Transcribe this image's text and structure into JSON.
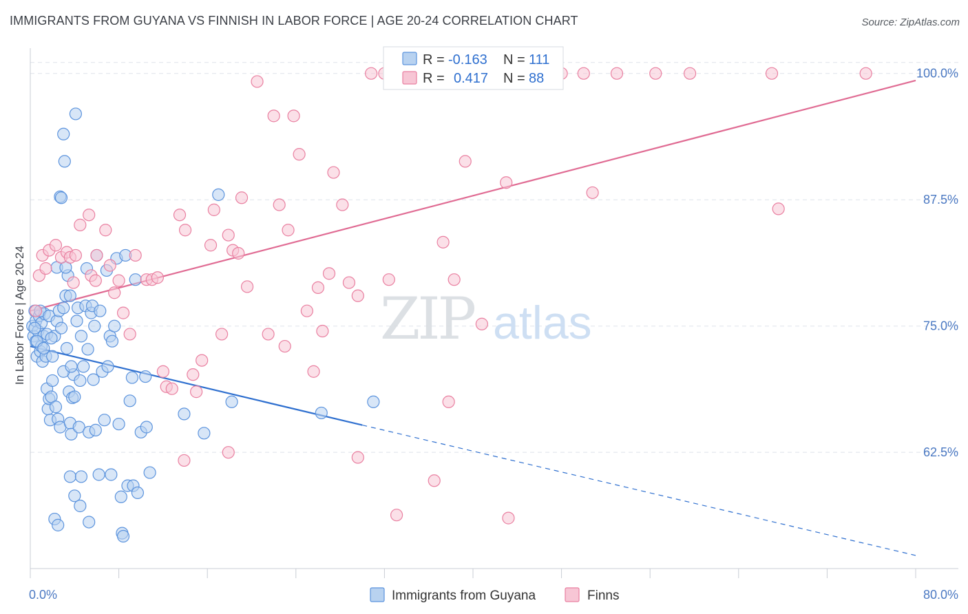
{
  "title": "IMMIGRANTS FROM GUYANA VS FINNISH IN LABOR FORCE | AGE 20-24 CORRELATION CHART",
  "source": "Source: ZipAtlas.com",
  "watermark": {
    "zip": "ZIP",
    "atlas": "atlas"
  },
  "colors": {
    "blue": "#5b93dd",
    "blue_fill": "#b8d2f0",
    "blue_line": "#2e6fcf",
    "pink": "#e97fa0",
    "pink_fill": "#f7c6d5",
    "pink_line": "#e06b93",
    "axis_text": "#4a78c2",
    "grid": "#dde2ea"
  },
  "legend_box": {
    "rows": [
      {
        "r_label": "R =",
        "r_value": "-0.163",
        "n_label": "N =",
        "n_value": "111"
      },
      {
        "r_label": "R =",
        "r_value": "0.417",
        "n_label": "N =",
        "n_value": "88"
      }
    ]
  },
  "bottom_legend": [
    {
      "label": "Immigrants from Guyana"
    },
    {
      "label": "Finns"
    }
  ],
  "chart_data": {
    "type": "scatter",
    "ylabel": "In Labor Force | Age 20-24",
    "x_tick_labels": [
      "0.0%",
      "80.0%"
    ],
    "y_tick_labels": [
      "100.0%",
      "87.5%",
      "75.0%",
      "62.5%"
    ],
    "y_tick_values": [
      100,
      87.5,
      75,
      62.5
    ],
    "xlim": [
      0,
      80
    ],
    "ylim": [
      51,
      102.5
    ],
    "grid": true,
    "legend_placement": "top-center",
    "series": [
      {
        "name": "Immigrants from Guyana",
        "r": -0.163,
        "n": 111,
        "trend": {
          "x0": 0,
          "y0": 73.0,
          "x1": 30,
          "y1": 65.2,
          "dash_x1": 80,
          "dash_y1": 52.3
        },
        "points": [
          [
            0.2,
            75.0
          ],
          [
            0.3,
            74.0
          ],
          [
            0.4,
            76.5
          ],
          [
            0.5,
            73.5
          ],
          [
            0.5,
            75.5
          ],
          [
            0.6,
            72.0
          ],
          [
            0.7,
            74.5
          ],
          [
            0.8,
            76.0
          ],
          [
            0.9,
            72.5
          ],
          [
            1.0,
            73.0
          ],
          [
            1.0,
            75.3
          ],
          [
            1.1,
            71.5
          ],
          [
            1.2,
            74.0
          ],
          [
            1.3,
            76.2
          ],
          [
            1.4,
            72.0
          ],
          [
            1.5,
            68.8
          ],
          [
            1.6,
            66.8
          ],
          [
            1.7,
            67.8
          ],
          [
            1.8,
            65.7
          ],
          [
            1.9,
            68.0
          ],
          [
            0.4,
            74.8
          ],
          [
            0.6,
            73.5
          ],
          [
            0.9,
            76.5
          ],
          [
            1.2,
            72.8
          ],
          [
            1.5,
            74.2
          ],
          [
            1.7,
            76.0
          ],
          [
            2.0,
            72.0
          ],
          [
            2.2,
            74.0
          ],
          [
            2.4,
            75.5
          ],
          [
            2.6,
            76.5
          ],
          [
            2.0,
            69.6
          ],
          [
            2.3,
            67.0
          ],
          [
            2.5,
            65.8
          ],
          [
            2.7,
            65.0
          ],
          [
            2.8,
            74.8
          ],
          [
            3.0,
            76.8
          ],
          [
            3.2,
            78.0
          ],
          [
            3.4,
            80.0
          ],
          [
            3.6,
            78.0
          ],
          [
            3.9,
            70.2
          ],
          [
            2.4,
            80.8
          ],
          [
            2.7,
            87.8
          ],
          [
            2.8,
            87.7
          ],
          [
            3.0,
            94.0
          ],
          [
            3.1,
            91.3
          ],
          [
            3.2,
            80.8
          ],
          [
            3.3,
            72.8
          ],
          [
            3.5,
            68.5
          ],
          [
            3.6,
            65.4
          ],
          [
            3.7,
            64.3
          ],
          [
            3.8,
            67.9
          ],
          [
            4.0,
            68.0
          ],
          [
            4.2,
            75.5
          ],
          [
            4.3,
            76.8
          ],
          [
            4.4,
            65.0
          ],
          [
            4.5,
            69.6
          ],
          [
            4.6,
            74.0
          ],
          [
            4.8,
            71.0
          ],
          [
            5.0,
            77.0
          ],
          [
            5.1,
            80.7
          ],
          [
            5.2,
            72.7
          ],
          [
            5.3,
            64.5
          ],
          [
            5.5,
            76.3
          ],
          [
            5.6,
            77.0
          ],
          [
            5.7,
            69.7
          ],
          [
            5.8,
            75.0
          ],
          [
            5.9,
            64.7
          ],
          [
            6.0,
            82.0
          ],
          [
            6.3,
            76.5
          ],
          [
            6.5,
            70.5
          ],
          [
            6.7,
            65.7
          ],
          [
            6.9,
            80.5
          ],
          [
            7.0,
            71.0
          ],
          [
            7.2,
            74.0
          ],
          [
            7.4,
            73.5
          ],
          [
            7.6,
            75.0
          ],
          [
            7.8,
            81.7
          ],
          [
            8.0,
            65.3
          ],
          [
            8.2,
            58.1
          ],
          [
            8.6,
            82.0
          ],
          [
            9.0,
            67.6
          ],
          [
            9.2,
            69.9
          ],
          [
            9.5,
            79.6
          ],
          [
            10.0,
            64.5
          ],
          [
            10.4,
            70.0
          ],
          [
            10.5,
            65.0
          ],
          [
            10.8,
            60.5
          ],
          [
            4.1,
            96.0
          ],
          [
            3.6,
            60.1
          ],
          [
            4.6,
            60.1
          ],
          [
            4.0,
            58.2
          ],
          [
            4.5,
            57.2
          ],
          [
            5.3,
            55.6
          ],
          [
            6.2,
            60.3
          ],
          [
            7.3,
            60.3
          ],
          [
            8.3,
            54.5
          ],
          [
            8.4,
            54.2
          ],
          [
            8.8,
            59.2
          ],
          [
            9.3,
            59.2
          ],
          [
            17.0,
            88.0
          ],
          [
            13.9,
            66.3
          ],
          [
            15.7,
            64.4
          ],
          [
            18.2,
            67.5
          ],
          [
            26.3,
            66.4
          ],
          [
            31.0,
            67.5
          ],
          [
            9.7,
            58.5
          ],
          [
            2.2,
            55.9
          ],
          [
            2.5,
            55.3
          ],
          [
            3.0,
            70.5
          ],
          [
            3.7,
            71.0
          ],
          [
            1.9,
            73.8
          ]
        ]
      },
      {
        "name": "Finns",
        "r": 0.417,
        "n": 88,
        "trend": {
          "x0": 0,
          "y0": 76.5,
          "x1": 80,
          "y1": 99.3
        },
        "points": [
          [
            0.5,
            76.5
          ],
          [
            0.8,
            80.0
          ],
          [
            1.1,
            82.0
          ],
          [
            1.7,
            82.5
          ],
          [
            2.3,
            83.0
          ],
          [
            2.8,
            81.8
          ],
          [
            3.3,
            82.3
          ],
          [
            3.6,
            81.8
          ],
          [
            3.9,
            79.3
          ],
          [
            4.1,
            82.0
          ],
          [
            4.5,
            85.0
          ],
          [
            5.3,
            86.0
          ],
          [
            5.5,
            80.0
          ],
          [
            6.0,
            82.0
          ],
          [
            6.8,
            84.5
          ],
          [
            7.2,
            81.0
          ],
          [
            7.6,
            78.3
          ],
          [
            8.0,
            79.5
          ],
          [
            8.4,
            76.3
          ],
          [
            9.0,
            74.2
          ],
          [
            9.5,
            82.0
          ],
          [
            10.5,
            79.6
          ],
          [
            11.0,
            79.6
          ],
          [
            11.5,
            79.8
          ],
          [
            12.0,
            70.5
          ],
          [
            12.3,
            69.0
          ],
          [
            12.8,
            68.8
          ],
          [
            13.5,
            86.0
          ],
          [
            14.0,
            84.5
          ],
          [
            14.7,
            70.2
          ],
          [
            15.0,
            68.5
          ],
          [
            15.5,
            71.6
          ],
          [
            16.3,
            83.0
          ],
          [
            16.6,
            86.5
          ],
          [
            17.3,
            74.2
          ],
          [
            17.9,
            84.0
          ],
          [
            18.3,
            82.5
          ],
          [
            18.8,
            82.2
          ],
          [
            19.1,
            87.7
          ],
          [
            19.6,
            78.9
          ],
          [
            20.5,
            99.2
          ],
          [
            21.5,
            74.2
          ],
          [
            22.0,
            95.8
          ],
          [
            22.5,
            87.0
          ],
          [
            23.3,
            84.5
          ],
          [
            23.8,
            95.8
          ],
          [
            24.3,
            92.0
          ],
          [
            25.0,
            76.5
          ],
          [
            25.6,
            70.5
          ],
          [
            26.0,
            78.8
          ],
          [
            26.4,
            74.5
          ],
          [
            27.0,
            80.2
          ],
          [
            27.4,
            90.2
          ],
          [
            28.2,
            87.0
          ],
          [
            28.8,
            79.3
          ],
          [
            29.6,
            78.0
          ],
          [
            30.8,
            100.0
          ],
          [
            32.0,
            100.0
          ],
          [
            32.4,
            79.6
          ],
          [
            33.1,
            56.3
          ],
          [
            34.7,
            100.0
          ],
          [
            35.2,
            100.0
          ],
          [
            36.5,
            59.7
          ],
          [
            37.3,
            83.3
          ],
          [
            37.8,
            67.5
          ],
          [
            38.3,
            79.6
          ],
          [
            39.3,
            91.3
          ],
          [
            40.0,
            100.0
          ],
          [
            40.8,
            75.2
          ],
          [
            43.0,
            89.2
          ],
          [
            43.2,
            56.0
          ],
          [
            45.8,
            100.0
          ],
          [
            47.0,
            100.0
          ],
          [
            48.0,
            100.0
          ],
          [
            50.0,
            100.0
          ],
          [
            50.8,
            88.2
          ],
          [
            53.0,
            100.0
          ],
          [
            56.5,
            100.0
          ],
          [
            59.6,
            100.0
          ],
          [
            67.0,
            100.0
          ],
          [
            67.6,
            86.6
          ],
          [
            75.5,
            100.0
          ],
          [
            13.9,
            61.7
          ],
          [
            17.9,
            62.5
          ],
          [
            29.6,
            62.0
          ],
          [
            1.4,
            80.7
          ],
          [
            5.9,
            79.5
          ],
          [
            23.0,
            73.0
          ]
        ]
      }
    ]
  }
}
